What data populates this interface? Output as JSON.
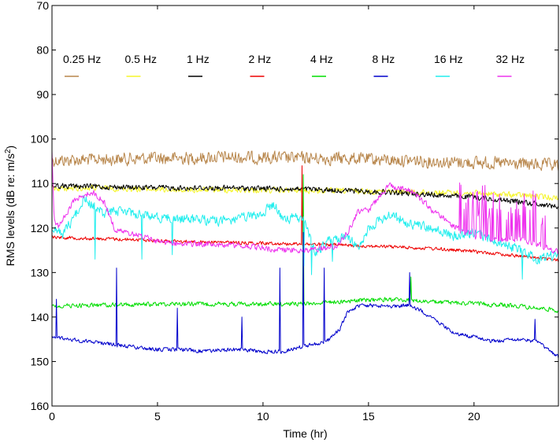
{
  "chart_data": {
    "type": "line",
    "title": "",
    "xlabel": "Time (hr)",
    "ylabel_prefix": "RMS levels (dB re: m/s",
    "ylabel_sup": "2",
    "ylabel_suffix": ")",
    "xlim": [
      0,
      24
    ],
    "ylim_top": 70,
    "ylim_bottom": 160,
    "y_inverted": true,
    "xticks": [
      0,
      5,
      10,
      15,
      20
    ],
    "yticks": [
      70,
      80,
      90,
      100,
      110,
      120,
      130,
      140,
      150,
      160
    ],
    "grid": false,
    "legend_position": "top",
    "draw_order": [
      "0.25 Hz",
      "0.5 Hz",
      "1 Hz",
      "2 Hz",
      "4 Hz",
      "16 Hz",
      "32 Hz",
      "8 Hz"
    ],
    "series": [
      {
        "name": "0.25 Hz",
        "color": "#b8864b",
        "noise": 1.3,
        "x": [
          0,
          2,
          4,
          6,
          8,
          10,
          12,
          14,
          16,
          18,
          20,
          22,
          24
        ],
        "y": [
          104.8,
          104.6,
          104.4,
          104.3,
          104.1,
          104.2,
          104.3,
          104.4,
          104.7,
          105.0,
          105.3,
          105.6,
          106.0
        ]
      },
      {
        "name": "0.5 Hz",
        "color": "#f5f52a",
        "noise": 0.6,
        "x": [
          0,
          2,
          4,
          6,
          8,
          10,
          12,
          14,
          16,
          18,
          20,
          22,
          24
        ],
        "y": [
          111.2,
          111.0,
          111.2,
          111.5,
          111.4,
          111.5,
          111.6,
          111.7,
          111.8,
          112.0,
          112.2,
          112.6,
          113.2
        ]
      },
      {
        "name": "1 Hz",
        "color": "#000000",
        "noise": 0.55,
        "x": [
          0,
          2,
          4,
          6,
          8,
          10,
          12,
          14,
          16,
          18,
          20,
          22,
          24
        ],
        "y": [
          110.5,
          110.7,
          110.9,
          111.0,
          111.0,
          111.1,
          111.3,
          111.6,
          112.0,
          112.5,
          113.1,
          114.0,
          115.2
        ]
      },
      {
        "name": "2 Hz",
        "color": "#ee0000",
        "noise": 0.35,
        "x": [
          0,
          2,
          4,
          6,
          8,
          10,
          12,
          14,
          16,
          18,
          20,
          22,
          24
        ],
        "y": [
          122.0,
          122.4,
          122.6,
          123.0,
          123.2,
          123.4,
          123.6,
          123.9,
          124.2,
          124.6,
          125.3,
          126.2,
          127.3
        ],
        "spikes": [
          {
            "x": 11.85,
            "y": 106.0
          }
        ]
      },
      {
        "name": "4 Hz",
        "color": "#00dd00",
        "noise": 0.45,
        "x": [
          0,
          2,
          4,
          6,
          8,
          10,
          12,
          14,
          16,
          18,
          20,
          22,
          24
        ],
        "y": [
          137.6,
          137.3,
          137.2,
          137.0,
          137.1,
          137.1,
          137.0,
          136.4,
          136.0,
          136.6,
          137.0,
          137.5,
          138.5
        ],
        "spikes": [
          {
            "x": 11.9,
            "y": 108.0
          },
          {
            "x": 17.0,
            "y": 131.0
          }
        ]
      },
      {
        "name": "8 Hz",
        "color": "#0000cc",
        "noise": 0.4,
        "x": [
          0,
          1,
          2,
          3,
          4,
          5,
          6,
          7,
          8,
          9,
          10,
          11,
          12,
          13,
          13.6,
          14,
          14.5,
          15,
          16,
          17,
          18,
          19,
          20,
          21,
          22,
          23,
          24
        ],
        "y": [
          144.3,
          145.1,
          145.6,
          146.2,
          146.9,
          147.3,
          147.3,
          147.6,
          147.5,
          147.3,
          147.8,
          147.7,
          146.5,
          145.5,
          143.0,
          139.0,
          137.5,
          137.5,
          137.5,
          137.4,
          140.0,
          143.5,
          144.5,
          145.5,
          145.0,
          145.6,
          149.0
        ],
        "spikes": [
          {
            "x": 0.2,
            "y": 136.0
          },
          {
            "x": 3.05,
            "y": 129.0
          },
          {
            "x": 5.95,
            "y": 138.0
          },
          {
            "x": 9.0,
            "y": 140.0
          },
          {
            "x": 10.8,
            "y": 129.0
          },
          {
            "x": 11.9,
            "y": 121.0
          },
          {
            "x": 12.9,
            "y": 129.0
          },
          {
            "x": 16.95,
            "y": 130.0
          },
          {
            "x": 22.9,
            "y": 140.5
          }
        ]
      },
      {
        "name": "16 Hz",
        "color": "#22eeee",
        "noise": 1.0,
        "x": [
          0,
          0.5,
          1,
          1.5,
          2,
          2.5,
          3,
          4,
          5,
          6,
          7,
          8,
          9,
          10,
          10.5,
          11,
          11.5,
          12,
          12.5,
          13,
          14,
          14.5,
          15,
          16,
          17,
          18,
          19,
          20,
          21,
          22,
          23,
          24
        ],
        "y": [
          120.5,
          121.5,
          118.0,
          113.5,
          115.0,
          117.0,
          116.0,
          116.8,
          117.5,
          118.0,
          118.0,
          118.5,
          117.8,
          116.8,
          114.5,
          118.5,
          117.5,
          118.5,
          126.0,
          123.0,
          122.0,
          124.5,
          120.0,
          117.0,
          119.0,
          120.0,
          122.0,
          121.0,
          123.0,
          124.5,
          127.0,
          126.0
        ],
        "dips": [
          {
            "x": 2.05,
            "y": 127.0
          },
          {
            "x": 4.25,
            "y": 127.0
          },
          {
            "x": 5.7,
            "y": 126.0
          },
          {
            "x": 11.95,
            "y": 128.5
          },
          {
            "x": 12.3,
            "y": 130.5
          },
          {
            "x": 13.3,
            "y": 127.5
          },
          {
            "x": 22.3,
            "y": 131.5
          }
        ]
      },
      {
        "name": "32 Hz",
        "color": "#ee33ee",
        "noise": 0.6,
        "x": [
          0,
          0.1,
          0.3,
          0.5,
          1,
          1.5,
          2,
          2.5,
          3,
          4,
          5,
          6,
          7,
          8,
          9,
          10,
          11,
          12,
          13,
          13.5,
          14,
          14.5,
          15,
          15.5,
          16,
          16.5,
          17,
          17.5,
          18,
          18.5,
          19,
          20,
          21,
          22,
          23,
          24
        ],
        "y": [
          103.0,
          118.5,
          119.5,
          118.5,
          114.0,
          112.5,
          112.0,
          114.5,
          120.5,
          121.5,
          123.0,
          123.5,
          123.6,
          123.8,
          124.0,
          124.5,
          125.0,
          125.0,
          124.5,
          124.0,
          121.0,
          116.5,
          116.0,
          113.0,
          110.5,
          111.0,
          111.5,
          113.5,
          116.0,
          117.5,
          119.5,
          122.0,
          122.5,
          122.5,
          123.5,
          125.5
        ],
        "bursts": [
          [
            19.3,
            23.4
          ]
        ]
      }
    ]
  }
}
